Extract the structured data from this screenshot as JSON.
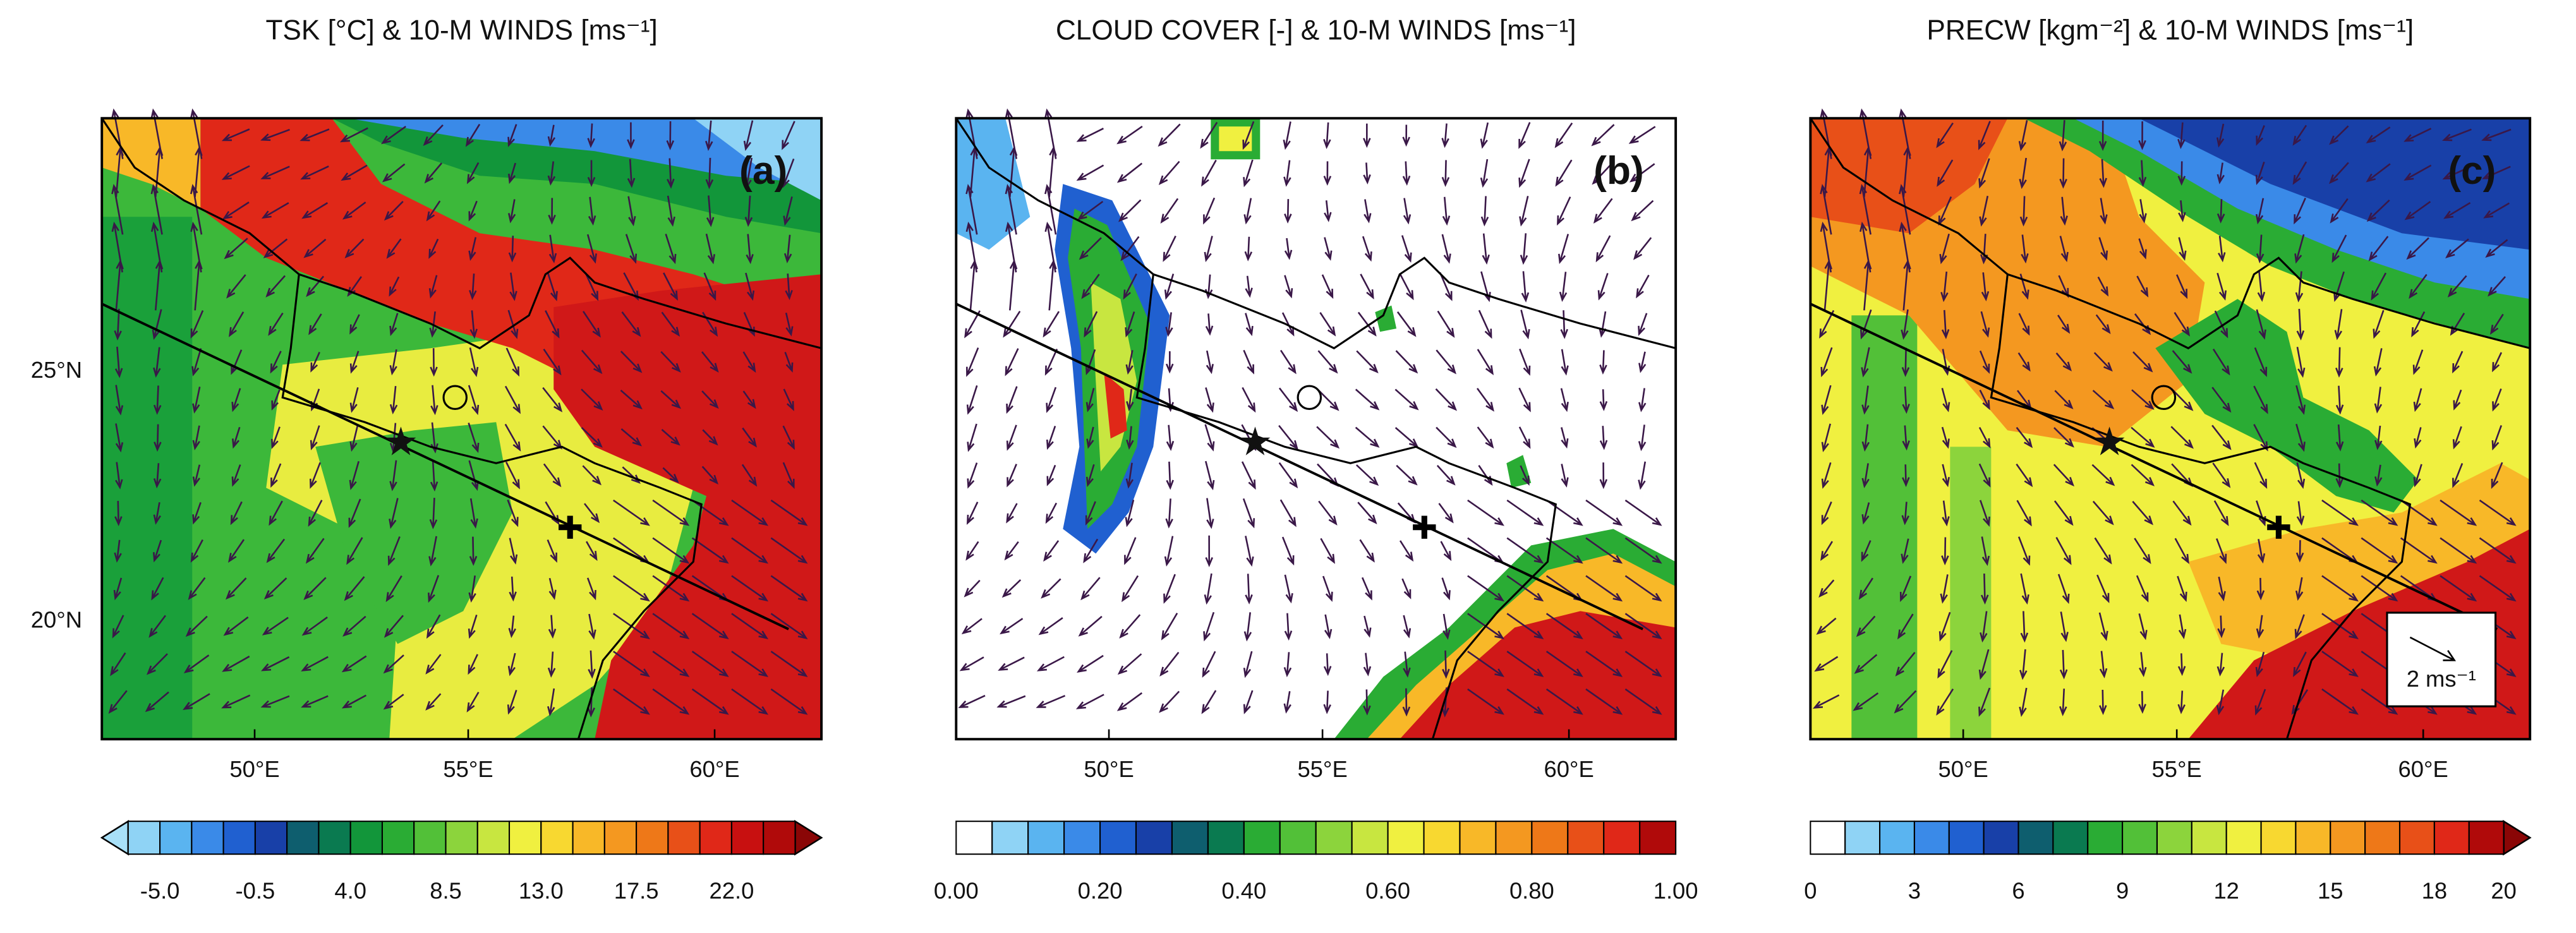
{
  "panels": [
    {
      "title": "TSK [°C] & 10-M WINDS [ms⁻¹]",
      "label": "(a)",
      "colorbar": {
        "extend": "both",
        "colors": [
          "#a8e0f8",
          "#8fd3f5",
          "#5ab4f0",
          "#3a8ae8",
          "#2060d0",
          "#1840a8",
          "#0e5e6e",
          "#0a7a50",
          "#12963a",
          "#2aac34",
          "#52c038",
          "#8cd43c",
          "#c8e640",
          "#f0f040",
          "#f8d830",
          "#f8b828",
          "#f49820",
          "#ee7818",
          "#e85018",
          "#e02818",
          "#c81010",
          "#b00a0a",
          "#8a0606"
        ],
        "tick_labels": [
          "-5.0",
          "-0.5",
          "4.0",
          "8.5",
          "13.0",
          "17.5",
          "22.0"
        ]
      }
    },
    {
      "title": "CLOUD COVER [-] & 10-M WINDS [ms⁻¹]",
      "label": "(b)",
      "colorbar": {
        "extend": "none",
        "colors": [
          "#ffffff",
          "#8fd3f5",
          "#5ab4f0",
          "#3a8ae8",
          "#2060d0",
          "#1840a8",
          "#0e5e6e",
          "#0a7a50",
          "#2aac34",
          "#52c038",
          "#8cd43c",
          "#c8e640",
          "#f0f040",
          "#f8d830",
          "#f8b828",
          "#f49820",
          "#ee7818",
          "#e85018",
          "#e02818",
          "#b00a0a"
        ],
        "tick_labels": [
          "0.00",
          "0.20",
          "0.40",
          "0.60",
          "0.80",
          "1.00"
        ]
      }
    },
    {
      "title": "PRECW [kgm⁻²] & 10-M WINDS [ms⁻¹]",
      "label": "(c)",
      "colorbar": {
        "extend": "max",
        "colors": [
          "#ffffff",
          "#8fd3f5",
          "#5ab4f0",
          "#3a8ae8",
          "#2060d0",
          "#1840a8",
          "#0e5e6e",
          "#0a7a50",
          "#2aac34",
          "#52c038",
          "#8cd43c",
          "#c8e640",
          "#f0f040",
          "#f8d830",
          "#f8b828",
          "#f49820",
          "#ee7818",
          "#e85018",
          "#e02818",
          "#b00a0a",
          "#8a0606"
        ],
        "tick_labels": [
          "0",
          "3",
          "6",
          "9",
          "12",
          "15",
          "18",
          "20"
        ]
      }
    }
  ],
  "lat_labels": [
    "25°N",
    "20°N"
  ],
  "lon_labels": [
    "50°E",
    "55°E",
    "60°E"
  ],
  "reference_vector_label": "2 ms⁻¹"
}
